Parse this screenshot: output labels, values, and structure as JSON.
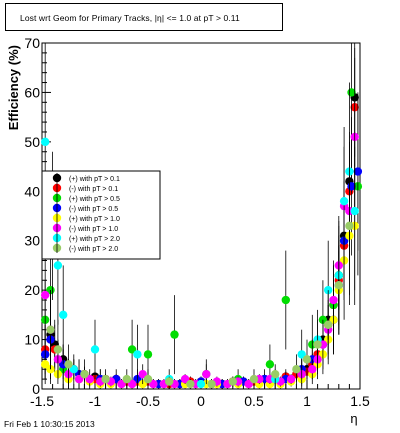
{
  "chart_data": {
    "type": "scatter",
    "title": "Lost wrt Geom for Primary Tracks, |η| <= 1.0 at pT > 0.11",
    "xlabel": "η",
    "ylabel": "Efficiency (%)",
    "xlim": [
      -1.5,
      1.5
    ],
    "ylim": [
      0,
      70
    ],
    "xticks": [
      -1.5,
      -1,
      -0.5,
      0,
      0.5,
      1,
      1.5
    ],
    "xtick_labels": [
      "-1.5",
      "-1",
      "-0.5",
      "0",
      "0.5",
      "1",
      "1.5"
    ],
    "yticks": [
      0,
      10,
      20,
      30,
      40,
      50,
      60,
      70
    ],
    "ytick_labels": [
      "0",
      "10",
      "20",
      "30",
      "40",
      "50",
      "60",
      "70"
    ],
    "grid": false,
    "legend_position": "left",
    "series": [
      {
        "name": "(+) with pT > 0.1",
        "color": "#000000",
        "x": [
          -1.47,
          -1.42,
          -1.38,
          -1.3,
          -1.2,
          -1.1,
          -1.0,
          -0.9,
          -0.8,
          -0.7,
          -0.6,
          -0.5,
          -0.4,
          -0.3,
          -0.2,
          -0.1,
          0.0,
          0.1,
          0.2,
          0.3,
          0.4,
          0.5,
          0.6,
          0.7,
          0.8,
          0.9,
          1.0,
          1.05,
          1.1,
          1.15,
          1.2,
          1.25,
          1.3,
          1.35,
          1.4,
          1.45
        ],
        "y": [
          7,
          11,
          9,
          6,
          4,
          3,
          2.5,
          2,
          2,
          1.5,
          1.5,
          1.5,
          1,
          1,
          1,
          1.5,
          1.5,
          1,
          1,
          1.5,
          1.5,
          1.5,
          2,
          2,
          2.5,
          3,
          4,
          5,
          7,
          10,
          14,
          17,
          23,
          31,
          42,
          59
        ],
        "yerr": [
          5,
          6,
          5,
          3,
          2,
          1.5,
          1,
          1,
          1,
          1,
          1,
          1,
          1,
          1,
          1,
          1,
          1,
          1,
          1,
          1,
          1,
          1,
          1,
          1,
          1,
          1.5,
          2,
          2,
          3,
          3,
          4,
          5,
          6,
          8,
          10,
          12
        ]
      },
      {
        "name": "(-) with pT > 0.1",
        "color": "#ff0000",
        "x": [
          -1.47,
          -1.42,
          -1.38,
          -1.3,
          -1.2,
          -1.1,
          -1.0,
          -0.9,
          -0.8,
          -0.7,
          -0.6,
          -0.5,
          -0.4,
          -0.3,
          -0.2,
          -0.1,
          0.0,
          0.1,
          0.2,
          0.3,
          0.4,
          0.5,
          0.6,
          0.7,
          0.8,
          0.9,
          1.0,
          1.05,
          1.1,
          1.15,
          1.2,
          1.25,
          1.3,
          1.35,
          1.4,
          1.45
        ],
        "y": [
          8,
          10,
          8,
          5,
          4,
          3,
          2,
          2,
          2,
          1.5,
          1.5,
          1.5,
          1,
          1,
          1,
          1.5,
          1.5,
          1,
          1,
          1.5,
          1.5,
          1.5,
          2,
          2,
          2.5,
          3,
          3.5,
          5,
          7,
          9,
          13,
          17,
          22,
          29,
          40,
          57
        ],
        "yerr": [
          5,
          6,
          5,
          3,
          2,
          1.5,
          1,
          1,
          1,
          1,
          1,
          1,
          1,
          1,
          1,
          1,
          1,
          1,
          1,
          1,
          1,
          1,
          1,
          1,
          1,
          1.5,
          2,
          2,
          3,
          3,
          4,
          5,
          6,
          8,
          10,
          12
        ]
      },
      {
        "name": "(+) with pT > 0.5",
        "color": "#00dd00",
        "x": [
          -1.47,
          -1.42,
          -1.3,
          -1.15,
          -0.95,
          -0.65,
          -0.5,
          -0.25,
          0.05,
          0.35,
          0.65,
          0.8,
          0.95,
          1.05,
          1.15,
          1.25,
          1.3,
          1.35,
          1.42,
          1.48
        ],
        "y": [
          14,
          20,
          4,
          3,
          2,
          8,
          7,
          11,
          3,
          2,
          5,
          18,
          3,
          9,
          14,
          17,
          23,
          30,
          60,
          41
        ],
        "yerr": [
          8,
          10,
          4,
          3,
          2,
          6,
          6,
          8,
          3,
          2,
          4,
          10,
          3,
          6,
          8,
          9,
          10,
          12,
          20,
          18
        ]
      },
      {
        "name": "(-) with pT > 0.5",
        "color": "#0000ff",
        "x": [
          -1.47,
          -1.42,
          -1.3,
          -1.15,
          -0.95,
          -0.8,
          -0.6,
          -0.4,
          -0.2,
          0.0,
          0.2,
          0.4,
          0.6,
          0.8,
          0.95,
          1.05,
          1.15,
          1.25,
          1.3,
          1.35,
          1.42,
          1.48
        ],
        "y": [
          7,
          10,
          5,
          3,
          2,
          2,
          2,
          1,
          1,
          1.5,
          1,
          1.5,
          2,
          2,
          4,
          6,
          9,
          14,
          21,
          30,
          41,
          44
        ],
        "yerr": [
          6,
          8,
          4,
          3,
          2,
          2,
          2,
          1,
          1,
          1,
          1,
          1,
          2,
          2,
          3,
          4,
          5,
          7,
          9,
          11,
          14,
          16
        ]
      },
      {
        "name": "(+) with pT > 1.0",
        "color": "#ffff00",
        "x": [
          -1.47,
          -1.42,
          -1.35,
          -1.25,
          -1.15,
          -1.05,
          -0.95,
          -0.85,
          -0.75,
          -0.65,
          -0.55,
          -0.45,
          -0.35,
          -0.25,
          -0.15,
          -0.05,
          0.05,
          0.15,
          0.25,
          0.35,
          0.45,
          0.55,
          0.65,
          0.75,
          0.85,
          0.95,
          1.05,
          1.1,
          1.15,
          1.2,
          1.25,
          1.3,
          1.35,
          1.4,
          1.45
        ],
        "y": [
          5,
          4,
          3,
          2,
          2,
          1.5,
          1,
          1,
          1,
          1,
          1,
          1,
          1,
          1,
          1,
          1,
          1,
          1,
          1,
          1,
          1,
          1,
          1,
          1,
          1.5,
          2,
          3,
          5,
          7,
          10,
          14,
          20,
          26,
          31,
          33
        ],
        "yerr": [
          3,
          3,
          2,
          2,
          1,
          1,
          1,
          1,
          1,
          1,
          1,
          1,
          1,
          1,
          1,
          1,
          1,
          1,
          1,
          1,
          1,
          1,
          1,
          1,
          1,
          1.5,
          2,
          3,
          4,
          5,
          7,
          9,
          12,
          14,
          16
        ]
      },
      {
        "name": "(-) with pT > 1.0",
        "color": "#ff00ff",
        "x": [
          -1.47,
          -1.42,
          -1.35,
          -1.25,
          -1.15,
          -1.05,
          -0.95,
          -0.85,
          -0.75,
          -0.65,
          -0.55,
          -0.45,
          -0.35,
          -0.25,
          -0.15,
          -0.05,
          0.05,
          0.15,
          0.25,
          0.35,
          0.45,
          0.55,
          0.65,
          0.75,
          0.85,
          0.95,
          1.05,
          1.1,
          1.15,
          1.2,
          1.25,
          1.3,
          1.35,
          1.4,
          1.45
        ],
        "y": [
          19,
          12,
          6,
          3,
          2,
          2,
          1.5,
          1.5,
          1,
          1,
          3,
          1,
          1,
          1,
          2,
          1,
          3,
          1.5,
          1,
          1.5,
          1,
          2,
          2,
          1.5,
          2,
          3,
          4,
          6,
          9,
          12,
          18,
          25,
          37,
          36,
          51
        ],
        "yerr": [
          10,
          8,
          4,
          3,
          2,
          2,
          1,
          1,
          1,
          1,
          2,
          1,
          1,
          1,
          1,
          1,
          2,
          1,
          1,
          1,
          1,
          1,
          1,
          1,
          1,
          2,
          2,
          3,
          4,
          5,
          7,
          9,
          12,
          14,
          16
        ]
      },
      {
        "name": "(+) with pT > 2.0",
        "color": "#00ffff",
        "x": [
          -1.47,
          -1.4,
          -1.35,
          -1.3,
          -1.2,
          -1.0,
          -0.6,
          -0.3,
          0.0,
          0.7,
          0.95,
          1.1,
          1.2,
          1.3,
          1.35,
          1.4,
          1.45
        ],
        "y": [
          50,
          33,
          25,
          15,
          4,
          8,
          7,
          2,
          1,
          2,
          7,
          10,
          20,
          23,
          38,
          44,
          36
        ],
        "yerr": [
          20,
          15,
          12,
          10,
          3,
          6,
          6,
          2,
          1,
          2,
          5,
          6,
          10,
          12,
          15,
          18,
          16
        ]
      },
      {
        "name": "(-) with pT > 2.0",
        "color": "#99cc66",
        "x": [
          -1.42,
          -1.35,
          -1.25,
          -1.1,
          -0.9,
          -0.7,
          -0.5,
          -0.3,
          -0.1,
          0.1,
          0.3,
          0.5,
          0.7,
          0.9,
          1.0,
          1.1,
          1.2,
          1.3,
          1.4
        ],
        "y": [
          12,
          8,
          5,
          3,
          2,
          2,
          2,
          1.5,
          1,
          1,
          1.5,
          2,
          3,
          4,
          6,
          9,
          13,
          21,
          33
        ],
        "yerr": [
          8,
          6,
          4,
          3,
          2,
          2,
          2,
          1,
          1,
          1,
          1,
          2,
          2,
          3,
          4,
          5,
          7,
          10,
          14
        ]
      }
    ]
  },
  "footer": {
    "timestamp": "Fri Feb  1 10:30:15 2013"
  }
}
